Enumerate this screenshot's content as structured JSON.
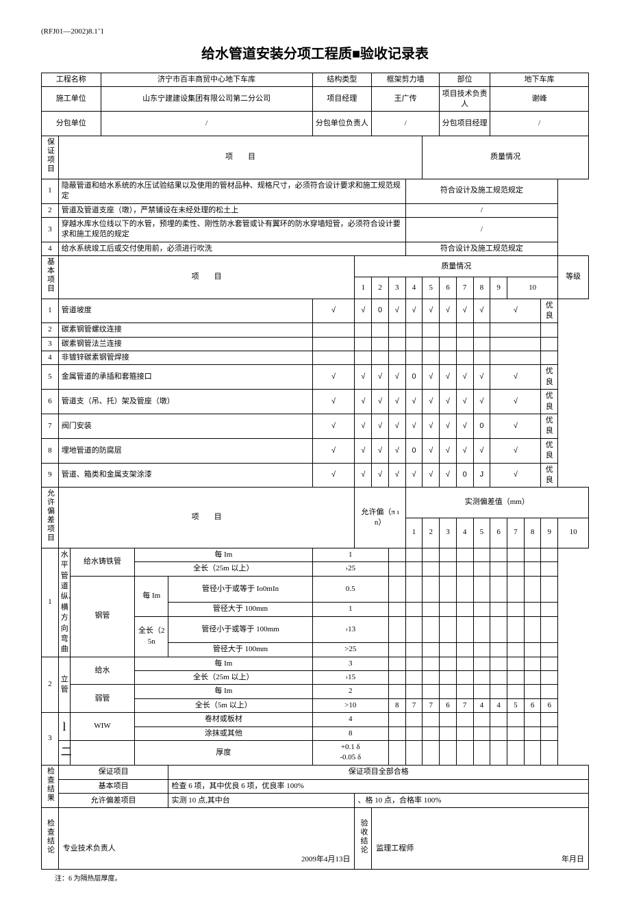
{
  "header": {
    "code_ref": "(RFJ01—2002)8.1˜1",
    "title": "给水管道安装分项工程质■验收记录表"
  },
  "info": {
    "project_name_label": "工程名称",
    "project_name": "济宁市百丰商贸中心地下车库",
    "structure_type_label": "结构类型",
    "structure_type": "框架剪力墙",
    "location_label": "部位",
    "location": "地下车库",
    "contractor_label": "施工单位",
    "contractor": "山东宁建建设集团有限公司第二分公司",
    "pm_label": "项目经理",
    "pm": "王广传",
    "tech_lead_label": "项目技术负责人",
    "tech_lead": "谢峰",
    "sub_label": "分包单位",
    "sub": "/",
    "sub_lead_label": "分包单位负责人",
    "sub_lead": "/",
    "sub_pm_label": "分包项目经理",
    "sub_pm": "/"
  },
  "guarantee": {
    "section_label": "保证项目",
    "col_item": "项　　目",
    "col_quality": "质量情况",
    "rows": [
      {
        "n": "1",
        "item": "隐蔽管道和给水系统的水压试验结果以及使用的管材品种、规格尺寸，必须符合设计要求和施工规范规定",
        "quality": "符合设计及施工规范规定"
      },
      {
        "n": "2",
        "item": "管道及管道支座（墩），严禁铺设在未经处理的松土上",
        "quality": "/"
      },
      {
        "n": "3",
        "item": "穿越水库水位线以下的水管，预埋的柔性、刚性防水套管或讣有翼环的防水穿墙短管，必须符合设计要求和施工规范的规定",
        "quality": "/"
      },
      {
        "n": "4",
        "item": "给水系统竣工后或交付使用前，必须进行吹洗",
        "quality": "符合设计及施工规范规定"
      }
    ]
  },
  "basic": {
    "section_label": "基本项目",
    "col_item": "项　　目",
    "col_quality": "质量情况",
    "col_grade": "等级",
    "cols": [
      "1",
      "2",
      "3",
      "4",
      "5",
      "6",
      "7",
      "8",
      "9",
      "10"
    ],
    "rows": [
      {
        "n": "1",
        "item": "管道坡度",
        "marks": [
          "√",
          "√",
          "0",
          "√",
          "√",
          "√",
          "√",
          "√",
          "√",
          "√"
        ],
        "grade": "优良"
      },
      {
        "n": "2",
        "item": "碳素钢管螺纹连接",
        "marks": [
          "",
          "",
          "",
          "",
          "",
          "",
          "",
          "",
          "",
          ""
        ],
        "grade": ""
      },
      {
        "n": "3",
        "item": "碳素钢管法兰连接",
        "marks": [
          "",
          "",
          "",
          "",
          "",
          "",
          "",
          "",
          "",
          ""
        ],
        "grade": ""
      },
      {
        "n": "4",
        "item": "非镀锌碳素钢管焊接",
        "marks": [
          "",
          "",
          "",
          "",
          "",
          "",
          "",
          "",
          "",
          ""
        ],
        "grade": ""
      },
      {
        "n": "5",
        "item": "金属管道的承插和套箍接口",
        "marks": [
          "√",
          "√",
          "√",
          "√",
          "0",
          "√",
          "√",
          "√",
          "√",
          "√"
        ],
        "grade": "优良"
      },
      {
        "n": "6",
        "item": "管道支（吊、托）架及管座（墩）",
        "marks": [
          "√",
          "√",
          "√",
          "√",
          "√",
          "√",
          "√",
          "√",
          "√",
          "√"
        ],
        "grade": "优良"
      },
      {
        "n": "7",
        "item": "阀门安装",
        "marks": [
          "√",
          "√",
          "√",
          "√",
          "√",
          "√",
          "√",
          "√",
          "0",
          "√"
        ],
        "grade": "优良"
      },
      {
        "n": "8",
        "item": "埋地管道的防腐层",
        "marks": [
          "√",
          "√",
          "√",
          "√",
          "0",
          "√",
          "√",
          "√",
          "√",
          "√"
        ],
        "grade": "优良"
      },
      {
        "n": "9",
        "item": "管道、箱类和金属支架涂漆",
        "marks": [
          "√",
          "√",
          "√",
          "√",
          "√",
          "√",
          "√",
          "0",
          "J",
          "√"
        ],
        "grade": "优良"
      }
    ]
  },
  "tolerance": {
    "section_label": "允许偏差项目",
    "col_item": "项　　目",
    "col_allow": "允许偏（π ι n）",
    "col_measured": "实测偏差值（mm）",
    "cols": [
      "1",
      "2",
      "3",
      "4",
      "5",
      "6",
      "7",
      "8",
      "9",
      "10"
    ],
    "group1": {
      "n": "1",
      "label": "水平管道纵、横方向弯曲",
      "sub_a_label": "给水铸铁管",
      "sub_b_label": "钢管",
      "rows_a": [
        {
          "cond": "每 Im",
          "allow": "1",
          "v": [
            "",
            "",
            "",
            "",
            "",
            "",
            "",
            "",
            "",
            ""
          ]
        },
        {
          "cond": "全长（25m 以上）",
          "allow": "›25",
          "v": [
            "",
            "",
            "",
            "",
            "",
            "",
            "",
            "",
            "",
            ""
          ]
        }
      ],
      "rows_b": [
        {
          "span": "每 Im",
          "cond": "管径小于或等于 Io0mIn",
          "allow": "0.5",
          "v": [
            "",
            "",
            "",
            "",
            "",
            "",
            "",
            "",
            "",
            ""
          ]
        },
        {
          "span": "",
          "cond": "管径大于 100mm",
          "allow": "1",
          "v": [
            "",
            "",
            "",
            "",
            "",
            "",
            "",
            "",
            "",
            ""
          ]
        },
        {
          "span": "全长（25n",
          "cond": "管径小于或等于 100mm",
          "allow": "›13",
          "v": [
            "",
            "",
            "",
            "",
            "",
            "",
            "",
            "",
            "",
            ""
          ]
        },
        {
          "span": "",
          "cond": "管径大于 100mm",
          "allow": ">25",
          "v": [
            "",
            "",
            "",
            "",
            "",
            "",
            "",
            "",
            "",
            ""
          ]
        }
      ]
    },
    "group2": {
      "n": "2",
      "label": "立管",
      "sub_a_label": "给水",
      "sub_b_label": "弱管",
      "rows": [
        {
          "cond": "每 Im",
          "allow": "3",
          "v": [
            "",
            "",
            "",
            "",
            "",
            "",
            "",
            "",
            "",
            ""
          ]
        },
        {
          "cond": "全长（25m 以上）",
          "allow": "›15",
          "v": [
            "",
            "",
            "",
            "",
            "",
            "",
            "",
            "",
            "",
            ""
          ]
        },
        {
          "cond": "每 Im",
          "allow": "2",
          "v": [
            "",
            "",
            "",
            "",
            "",
            "",
            "",
            "",
            "",
            ""
          ]
        },
        {
          "cond": "全长（5m 以上）",
          "allow": ">10",
          "v": [
            "8",
            "7",
            "7",
            "6",
            "7",
            "4",
            "4",
            "5",
            "6",
            "6"
          ]
        }
      ]
    },
    "group3": {
      "n": "3",
      "label_a": "l",
      "label_b": "二",
      "sub_label": "WIW",
      "rows": [
        {
          "cond": "卷材或板材",
          "allow": "4",
          "v": [
            "",
            "",
            "",
            "",
            "",
            "",
            "",
            "",
            "",
            ""
          ]
        },
        {
          "cond": "涂抹或其他",
          "allow": "8",
          "v": [
            "",
            "",
            "",
            "",
            "",
            "",
            "",
            "",
            "",
            ""
          ]
        },
        {
          "cond": "厚度",
          "allow": "+0.1 δ\n-0.05 δ",
          "v": [
            "",
            "",
            "",
            "",
            "",
            "",
            "",
            "",
            "",
            ""
          ]
        }
      ]
    }
  },
  "result": {
    "section_label": "检查结果",
    "row1_label": "保证项目",
    "row1": "保证项目全部合格",
    "row2_label": "基本项目",
    "row2": "检查 6 项，其中优良 6 项，优良率 100%",
    "row3_label": "允许偏差项目",
    "row3a": "实测 10 点,其中台",
    "row3b": "、格 10 点，合格率 100%"
  },
  "conclusion": {
    "section_label": "检查结论",
    "left_label": "专业技术负责人",
    "left_date": "2009年4月13日",
    "mid_label": "验收结论",
    "right_label": "监理工程师",
    "right_date": "年月日"
  },
  "footnote": "注：6 为隔热层厚度。"
}
